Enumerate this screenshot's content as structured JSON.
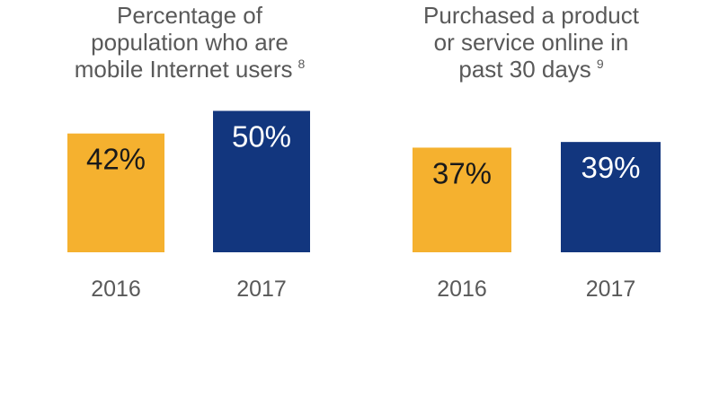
{
  "colors": {
    "series_2016": "#f5b12f",
    "series_2017": "#12367e",
    "label_on_2016": "#1a1a1a",
    "label_on_2017": "#ffffff",
    "text_gray": "#595959"
  },
  "chart_data": [
    {
      "type": "bar",
      "title_lines": [
        "Percentage of",
        "population who are",
        "mobile Internet users"
      ],
      "title_footnote": "8",
      "categories": [
        "2016",
        "2017"
      ],
      "values": [
        42,
        50
      ],
      "value_labels": [
        "42%",
        "50%"
      ],
      "xlabel": "",
      "ylabel": "",
      "ylim": [
        0,
        100
      ],
      "grid": false
    },
    {
      "type": "bar",
      "title_lines": [
        "Purchased a product",
        "or service online in",
        "past 30 days"
      ],
      "title_footnote": "9",
      "categories": [
        "2016",
        "2017"
      ],
      "values": [
        37,
        39
      ],
      "value_labels": [
        "37%",
        "39%"
      ],
      "xlabel": "",
      "ylabel": "",
      "ylim": [
        0,
        100
      ],
      "grid": false
    }
  ]
}
